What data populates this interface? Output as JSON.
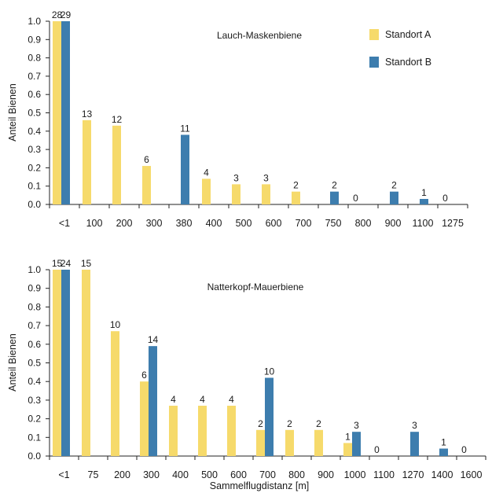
{
  "colors": {
    "standort_a": "#F6DA6B",
    "standort_b": "#3D7DAE",
    "axis": "#222222"
  },
  "chart_data": [
    {
      "type": "bar",
      "title": "Lauch-Maskenbiene",
      "xlabel": "",
      "ylabel": "Anteil Bienen",
      "ylim": [
        0,
        1.0
      ],
      "yticks": [
        "0.0",
        "0.1",
        "0.2",
        "0.3",
        "0.4",
        "0.5",
        "0.6",
        "0.7",
        "0.8",
        "0.9",
        "1.0"
      ],
      "grid": false,
      "legend_position": "top-right",
      "categories": [
        "<1",
        "100",
        "200",
        "300",
        "380",
        "400",
        "500",
        "600",
        "700",
        "750",
        "800",
        "900",
        "1100",
        "1275"
      ],
      "series": [
        {
          "name": "Standort A",
          "color": "#F6DA6B",
          "values": [
            1.0,
            0.46,
            0.43,
            0.21,
            null,
            0.14,
            0.11,
            0.11,
            0.07,
            null,
            0.0,
            null,
            null,
            0.0
          ],
          "labels": [
            "28",
            "13",
            "12",
            "6",
            "",
            "4",
            "3",
            "3",
            "2",
            "",
            "0",
            "",
            "",
            "0"
          ]
        },
        {
          "name": "Standort B",
          "color": "#3D7DAE",
          "values": [
            1.0,
            null,
            null,
            null,
            0.38,
            null,
            null,
            null,
            null,
            0.07,
            null,
            0.07,
            0.03,
            null
          ],
          "labels": [
            "29",
            "",
            "",
            "",
            "11",
            "",
            "",
            "",
            "",
            "2",
            "",
            "2",
            "1",
            ""
          ]
        }
      ]
    },
    {
      "type": "bar",
      "title": "Natterkopf-Mauerbiene",
      "xlabel": "Sammelflugdistanz [m]",
      "ylabel": "Anteil Bienen",
      "ylim": [
        0,
        1.0
      ],
      "yticks": [
        "0.0",
        "0.1",
        "0.2",
        "0.3",
        "0.4",
        "0.5",
        "0.6",
        "0.7",
        "0.8",
        "0.9",
        "1.0"
      ],
      "grid": false,
      "categories": [
        "<1",
        "75",
        "200",
        "300",
        "400",
        "500",
        "600",
        "700",
        "800",
        "900",
        "1000",
        "1100",
        "1270",
        "1400",
        "1600"
      ],
      "series": [
        {
          "name": "Standort A",
          "color": "#F6DA6B",
          "values": [
            1.0,
            1.0,
            0.67,
            0.4,
            0.27,
            0.27,
            0.27,
            0.14,
            0.14,
            0.14,
            0.07,
            0.0,
            null,
            null,
            0.0
          ],
          "labels": [
            "15",
            "15",
            "10",
            "6",
            "4",
            "4",
            "4",
            "2",
            "2",
            "2",
            "1",
            "0",
            "",
            "",
            "0"
          ]
        },
        {
          "name": "Standort B",
          "color": "#3D7DAE",
          "values": [
            1.0,
            null,
            null,
            0.59,
            null,
            null,
            null,
            0.42,
            null,
            null,
            0.13,
            null,
            0.13,
            0.04,
            null
          ],
          "labels": [
            "24",
            "",
            "",
            "14",
            "",
            "",
            "",
            "10",
            "",
            "",
            "3",
            "",
            "3",
            "1",
            ""
          ]
        }
      ]
    }
  ]
}
